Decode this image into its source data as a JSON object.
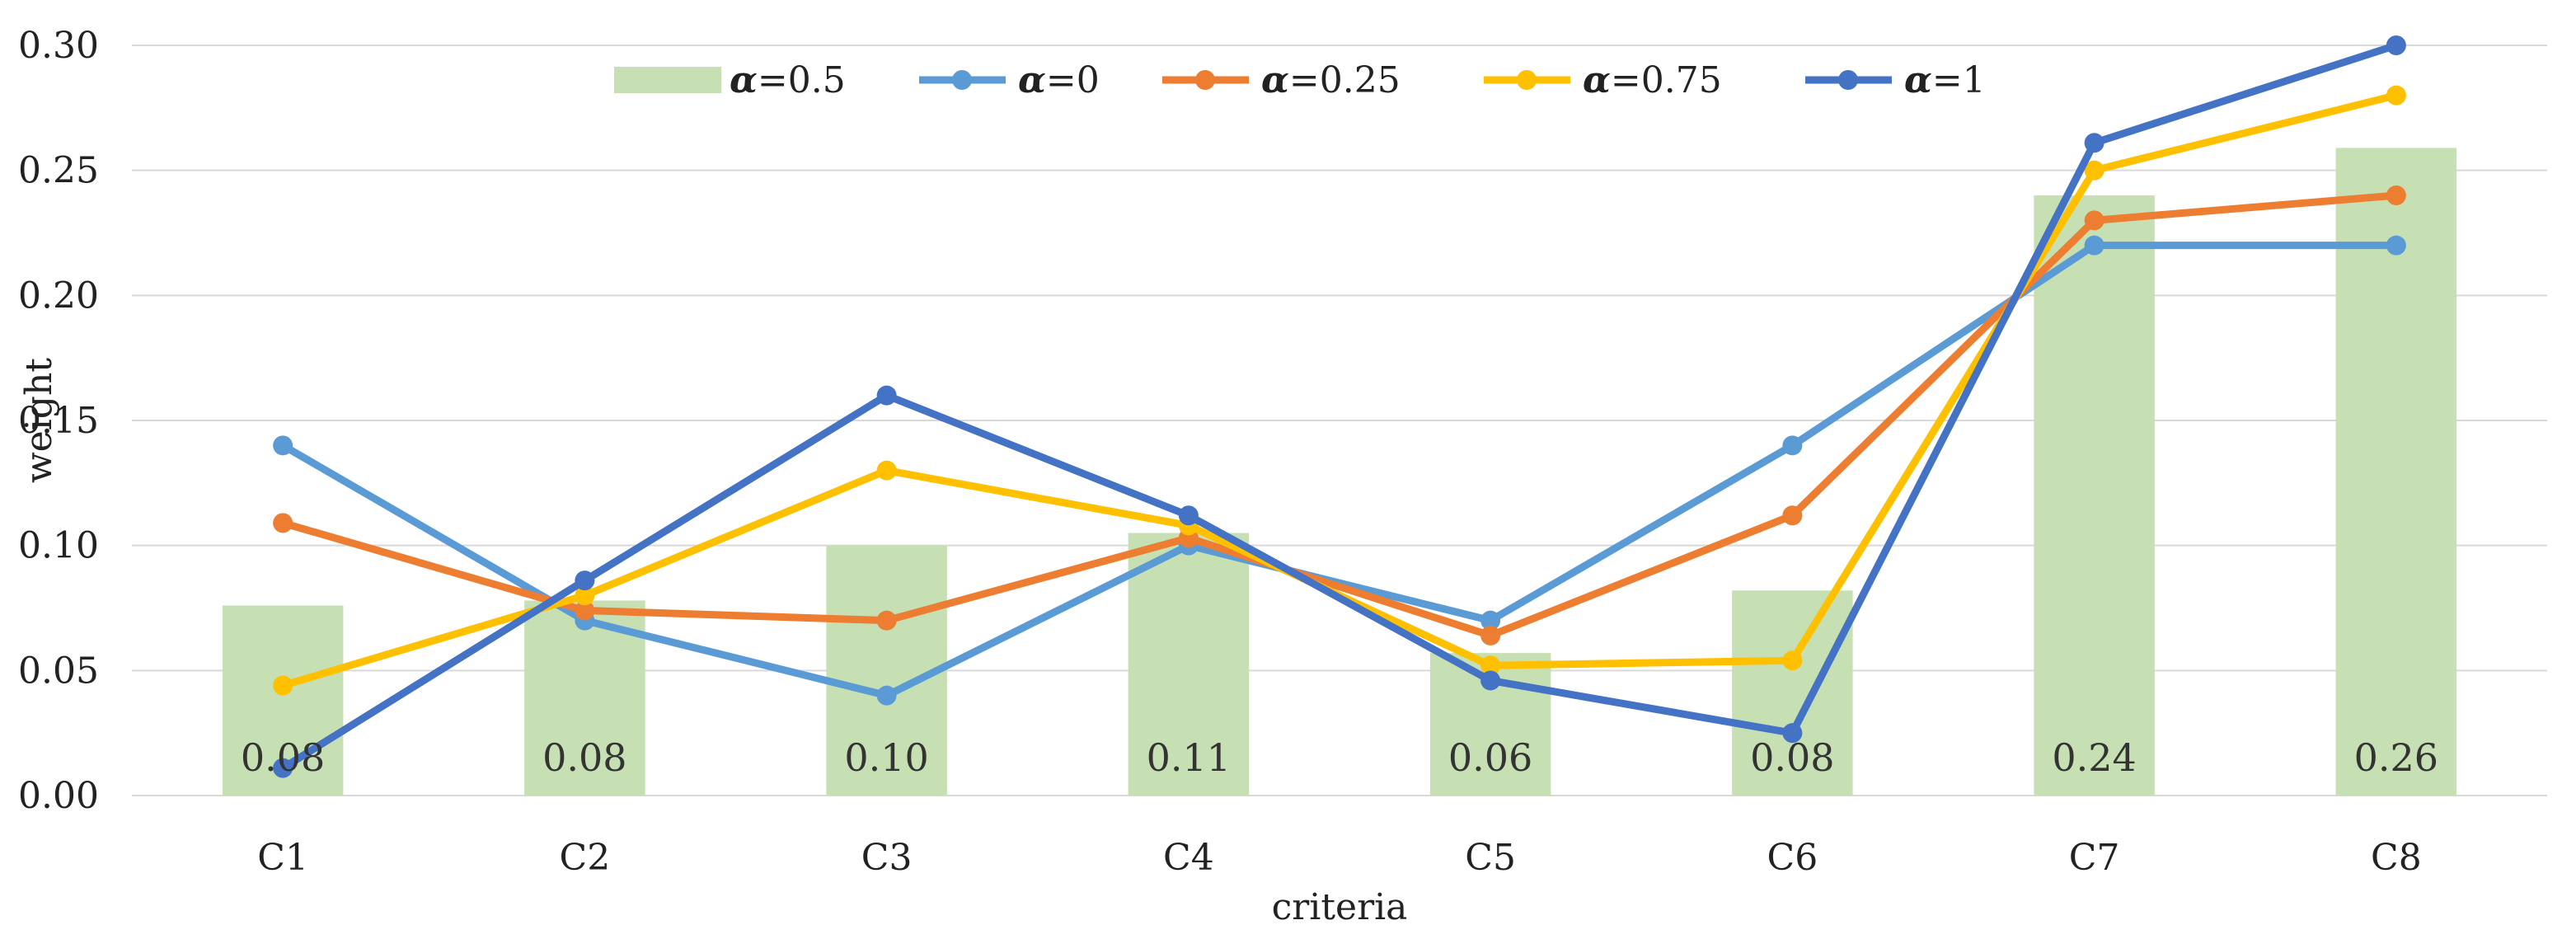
{
  "chart_data": {
    "type": "bar+line",
    "title": "",
    "xlabel": "criteria",
    "ylabel": "weight",
    "ylim": [
      0,
      0.3
    ],
    "yticks": [
      "0.00",
      "0.05",
      "0.10",
      "0.15",
      "0.20",
      "0.25",
      "0.30"
    ],
    "grid": true,
    "legend_position": "top",
    "categories": [
      "C1",
      "C2",
      "C3",
      "C4",
      "C5",
      "C6",
      "C7",
      "C8"
    ],
    "bar_series": {
      "name": "α=0.5",
      "alpha_symbol": "α",
      "alpha_value": "=0.5",
      "color": "#c6e0b4",
      "values": [
        0.076,
        0.078,
        0.1,
        0.105,
        0.057,
        0.082,
        0.24,
        0.259
      ],
      "labels": [
        "0.08",
        "0.08",
        "0.10",
        "0.11",
        "0.06",
        "0.08",
        "0.24",
        "0.26"
      ]
    },
    "series": [
      {
        "name": "α=0",
        "alpha_symbol": "α",
        "alpha_value": "=0",
        "color": "#5b9bd5",
        "values": [
          0.14,
          0.07,
          0.04,
          0.1,
          0.07,
          0.14,
          0.22,
          0.22
        ]
      },
      {
        "name": "α=0.25",
        "alpha_symbol": "α",
        "alpha_value": "=0.25",
        "color": "#ed7d31",
        "values": [
          0.109,
          0.074,
          0.07,
          0.103,
          0.064,
          0.112,
          0.23,
          0.24
        ]
      },
      {
        "name": "α=0.75",
        "alpha_symbol": "α",
        "alpha_value": "=0.75",
        "color": "#ffc000",
        "values": [
          0.044,
          0.08,
          0.13,
          0.108,
          0.052,
          0.054,
          0.25,
          0.28
        ]
      },
      {
        "name": "α=1",
        "alpha_symbol": "α",
        "alpha_value": "=1",
        "color": "#4472c4",
        "values": [
          0.011,
          0.086,
          0.16,
          0.112,
          0.046,
          0.025,
          0.261,
          0.3
        ]
      }
    ]
  }
}
